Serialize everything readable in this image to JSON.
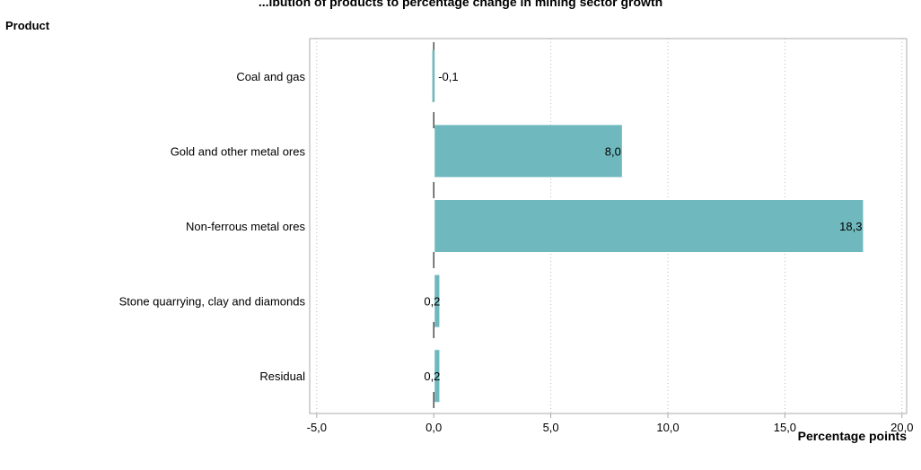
{
  "chart_data": {
    "type": "bar",
    "orientation": "horizontal",
    "title": "...ibution of products to percentage change in mining sector growth",
    "ylabel": "Product",
    "xlabel": "Percentage points",
    "categories": [
      "Coal and gas",
      "Gold and other metal ores",
      "Non-ferrous metal ores",
      "Stone quarrying, clay and diamonds",
      "Residual"
    ],
    "values": [
      -0.1,
      8.0,
      18.3,
      0.2,
      0.2
    ],
    "value_labels": [
      "-0,1",
      "8,0",
      "18,3",
      "0,2",
      "0,2"
    ],
    "xlim": [
      -5.3,
      20.2
    ],
    "xticks": [
      -5,
      0,
      5,
      10,
      15,
      20
    ],
    "xtick_labels": [
      "-5,0",
      "0,0",
      "5,0",
      "10,0",
      "15,0",
      "20,0"
    ],
    "grid": "vertical-dotted",
    "bar_color": "#6fb9be"
  }
}
